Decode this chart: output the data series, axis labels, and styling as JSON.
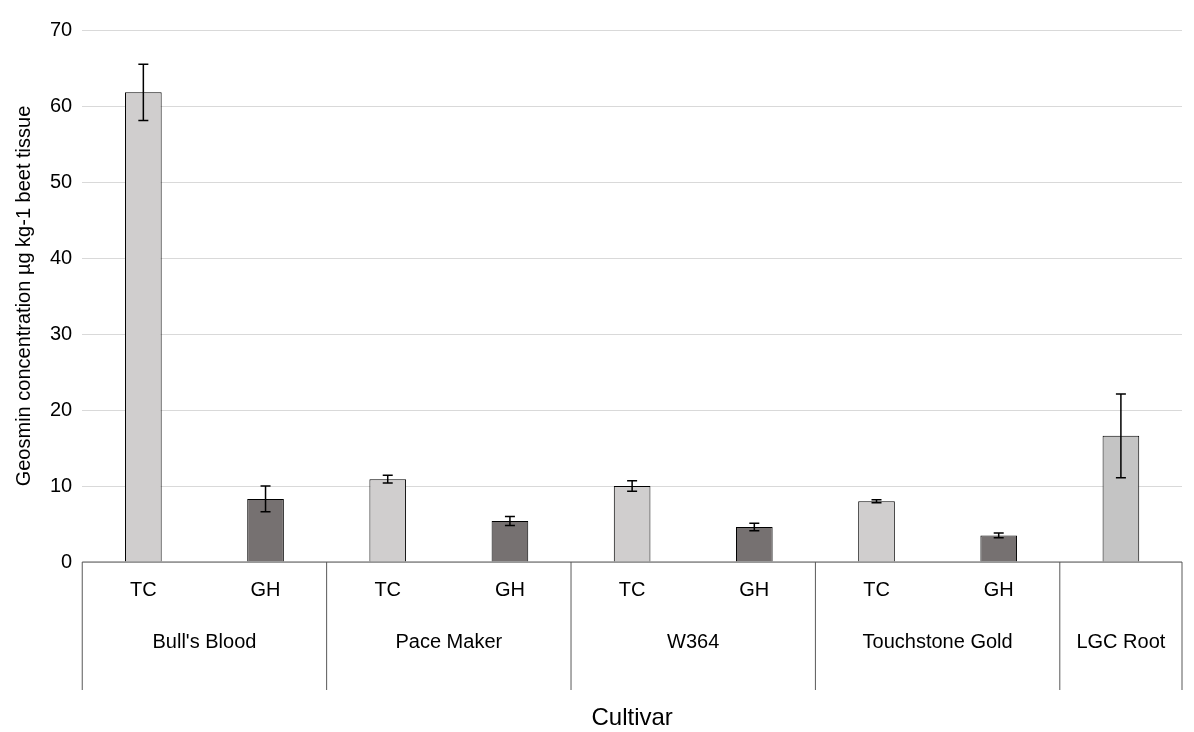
{
  "chart_data": {
    "type": "bar",
    "xlabel": "Cultivar",
    "ylabel": "Geosmin concentration µg kg-1 beet tissue",
    "categories": [
      "TC",
      "GH",
      "TC",
      "GH",
      "TC",
      "GH",
      "TC",
      "GH",
      null
    ],
    "values": [
      61.8,
      8.3,
      10.9,
      5.4,
      10.0,
      4.6,
      8.0,
      3.5,
      16.6
    ],
    "errors": [
      3.7,
      1.7,
      0.5,
      0.6,
      0.7,
      0.5,
      0.2,
      0.3,
      5.5
    ],
    "colors": [
      "#d0cece",
      "#767171",
      "#d0cece",
      "#767171",
      "#d0cece",
      "#767171",
      "#d0cece",
      "#767171",
      "#c4c4c4"
    ],
    "annotations": [
      "Bull's Blood",
      "Pace Maker",
      "W364",
      "Touchstone Gold",
      "LGC Root"
    ],
    "ylim": [
      0,
      70
    ],
    "yticks": [
      0,
      10,
      20,
      30,
      40,
      50,
      60,
      70
    ],
    "grid": "y",
    "legend": false
  }
}
